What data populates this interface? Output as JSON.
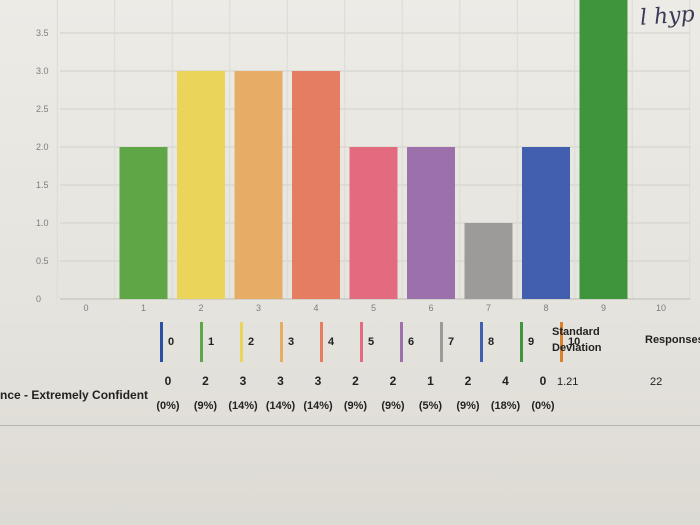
{
  "chart_data": {
    "type": "bar",
    "categories": [
      "0",
      "1",
      "2",
      "3",
      "4",
      "5",
      "6",
      "7",
      "8",
      "9",
      "10"
    ],
    "values": [
      0,
      2,
      3,
      3,
      3,
      2,
      2,
      1,
      2,
      4,
      0
    ],
    "colors": [
      "#2b4fa1",
      "#5fa646",
      "#ead55a",
      "#e7ad66",
      "#e57e60",
      "#e36b80",
      "#9b70ab",
      "#9c9b99",
      "#415fae",
      "#3f953c",
      "#d9832f"
    ],
    "yticks": [
      "0",
      "0.5",
      "1.0",
      "1.5",
      "2.0",
      "2.5",
      "3.0",
      "3.5"
    ],
    "ylim": [
      0,
      4
    ],
    "grid": true
  },
  "handwriting": "l hyp",
  "legend": {
    "labels": [
      "0",
      "1",
      "2",
      "3",
      "4",
      "5",
      "6",
      "7",
      "8",
      "9",
      "10"
    ],
    "std_header": [
      "Standard",
      "Deviation"
    ],
    "responses_header": "Responses"
  },
  "row": {
    "label": "nce - Extremely Confident",
    "counts": [
      "0",
      "2",
      "3",
      "3",
      "3",
      "2",
      "2",
      "1",
      "2",
      "4",
      "0"
    ],
    "percents": [
      "(0%)",
      "(9%)",
      "(14%)",
      "(14%)",
      "(14%)",
      "(9%)",
      "(9%)",
      "(5%)",
      "(9%)",
      "(18%)",
      "(0%)"
    ],
    "std_dev": "1.21",
    "responses": "22"
  }
}
